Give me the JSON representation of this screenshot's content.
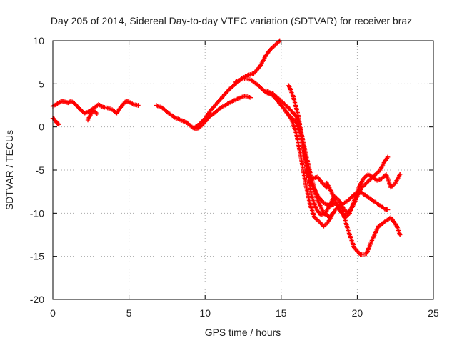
{
  "chart_data": {
    "type": "scatter",
    "title": "Day 205 of 2014, Sidereal Day-to-day VTEC variation (SDTVAR) for receiver braz",
    "xlabel": "GPS time / hours",
    "ylabel": "SDTVAR / TECUs",
    "xlim": [
      0,
      25
    ],
    "ylim": [
      -20,
      10
    ],
    "xticks": [
      "0",
      "5",
      "10",
      "15",
      "20",
      "25"
    ],
    "yticks": [
      "-20",
      "-15",
      "-10",
      "-5",
      "0",
      "5",
      "10"
    ],
    "grid": true,
    "marker": "+",
    "colors": {
      "series": "#ff0000",
      "grid": "#aaaaaa",
      "axes": "#000000"
    },
    "series": [
      {
        "segments": [
          {
            "x": [
              0.0,
              0.1,
              0.2,
              0.3,
              0.4
            ],
            "y": [
              1.0,
              0.9,
              0.6,
              0.4,
              0.3
            ]
          },
          {
            "x": [
              0.0,
              0.3,
              0.6,
              0.8,
              1.0,
              1.2,
              1.5,
              1.8,
              2.1,
              2.4,
              2.7,
              3.0,
              3.3,
              3.6,
              3.9,
              4.2,
              4.5,
              4.8,
              5.0,
              5.3,
              5.6
            ],
            "y": [
              2.4,
              2.7,
              3.0,
              2.9,
              2.8,
              3.0,
              2.6,
              2.0,
              1.6,
              1.8,
              2.2,
              2.6,
              2.3,
              2.2,
              2.0,
              1.6,
              2.4,
              3.0,
              2.9,
              2.6,
              2.5
            ]
          },
          {
            "x": [
              2.3,
              2.5,
              2.7,
              2.9
            ],
            "y": [
              0.8,
              1.5,
              1.9,
              1.5
            ]
          },
          {
            "x": [
              6.8,
              7.2,
              7.6,
              8.0,
              8.4,
              8.8,
              9.0,
              9.2,
              9.4,
              9.6,
              9.8,
              10.0,
              10.3,
              10.6,
              11.0,
              11.4,
              11.8,
              12.2,
              12.6,
              13.0
            ],
            "y": [
              2.5,
              2.2,
              1.6,
              1.1,
              0.8,
              0.5,
              0.2,
              -0.1,
              -0.2,
              -0.1,
              0.2,
              0.6,
              1.2,
              1.6,
              2.2,
              2.6,
              3.0,
              3.3,
              3.6,
              3.4
            ]
          },
          {
            "x": [
              9.3,
              9.6,
              10.0,
              10.4,
              10.8,
              11.2,
              11.6,
              12.0,
              12.4,
              12.8,
              13.2,
              13.6,
              14.0,
              14.3,
              14.6,
              14.9
            ],
            "y": [
              -0.1,
              0.3,
              1.0,
              2.0,
              2.8,
              3.6,
              4.4,
              5.0,
              5.6,
              6.0,
              6.2,
              7.0,
              8.3,
              9.0,
              9.5,
              10.0
            ]
          },
          {
            "x": [
              12.0,
              12.5,
              13.0,
              13.5,
              14.0,
              14.5,
              15.0,
              15.5,
              16.0,
              16.3,
              16.6,
              17.0,
              17.4,
              17.8,
              18.2,
              18.6,
              19.0,
              19.4,
              19.8,
              20.2,
              20.6,
              21.0,
              21.4,
              21.8,
              22.2,
              22.6,
              22.8
            ],
            "y": [
              5.2,
              5.6,
              5.5,
              4.8,
              4.0,
              3.6,
              2.5,
              1.4,
              0.5,
              -1.0,
              -3.5,
              -6.5,
              -8.0,
              -8.8,
              -9.2,
              -8.8,
              -9.5,
              -12.0,
              -14.0,
              -14.8,
              -14.7,
              -13.0,
              -11.5,
              -11.0,
              -10.5,
              -11.5,
              -12.5
            ]
          },
          {
            "x": [
              14.0,
              14.5,
              15.0,
              15.5,
              16.0,
              16.3,
              16.6,
              17.0,
              17.4,
              17.8,
              18.2,
              18.6,
              19.0,
              19.4,
              19.8,
              20.2,
              20.6,
              21.0,
              21.4,
              21.8,
              22.0
            ],
            "y": [
              4.2,
              3.8,
              3.0,
              2.2,
              1.2,
              -0.5,
              -3.0,
              -6.0,
              -8.5,
              -10.0,
              -10.5,
              -9.5,
              -9.0,
              -8.5,
              -7.8,
              -7.5,
              -8.0,
              -8.5,
              -9.0,
              -9.5,
              -9.6
            ]
          },
          {
            "x": [
              15.5,
              15.8,
              16.1,
              16.4,
              16.7,
              17.0,
              17.3,
              17.6,
              17.9,
              18.2,
              18.5,
              18.8,
              19.1,
              19.4,
              19.7,
              20.0,
              20.3,
              20.6,
              20.9,
              21.2,
              21.5,
              21.8,
              22.0
            ],
            "y": [
              4.8,
              3.5,
              1.5,
              -1.5,
              -5.0,
              -8.0,
              -9.5,
              -10.2,
              -10.0,
              -9.0,
              -8.0,
              -8.5,
              -9.5,
              -10.0,
              -9.2,
              -8.0,
              -7.0,
              -6.5,
              -6.0,
              -5.5,
              -5.0,
              -4.0,
              -3.5
            ]
          },
          {
            "x": [
              15.3,
              15.7,
              16.0,
              16.3,
              16.6,
              16.9,
              17.2,
              17.5,
              17.8,
              18.1,
              18.4
            ],
            "y": [
              1.8,
              0.8,
              -0.8,
              -3.5,
              -6.5,
              -9.0,
              -10.5,
              -11.0,
              -11.5,
              -11.0,
              -10.0
            ]
          },
          {
            "x": [
              18.0,
              18.3,
              18.6,
              18.9,
              19.2,
              19.5,
              19.8,
              20.1,
              20.4,
              20.7,
              21.0,
              21.3,
              21.6,
              21.9,
              22.2,
              22.5,
              22.8
            ],
            "y": [
              -6.5,
              -7.5,
              -8.8,
              -9.8,
              -10.5,
              -10.0,
              -8.5,
              -7.0,
              -6.0,
              -5.5,
              -5.8,
              -6.2,
              -6.0,
              -5.5,
              -7.0,
              -6.5,
              -5.5
            ]
          },
          {
            "x": [
              16.6,
              17.0,
              17.4,
              17.7,
              18.0
            ],
            "y": [
              -5.2,
              -6.0,
              -5.8,
              -6.5,
              -7.0
            ]
          }
        ]
      }
    ]
  }
}
